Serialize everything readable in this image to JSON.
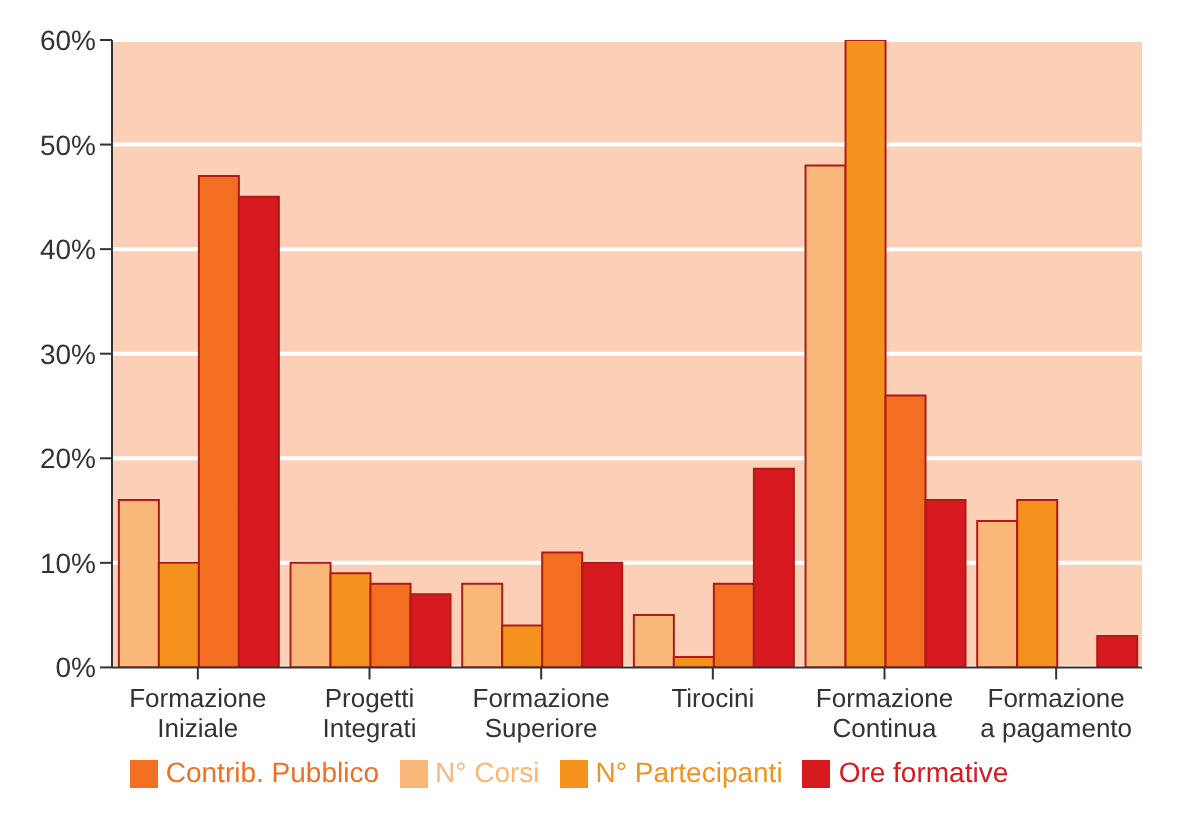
{
  "chart_data": {
    "type": "bar",
    "categories": [
      "Formazione Iniziale",
      "Progetti Integrati",
      "Formazione Superiore",
      "Tirocini",
      "Formazione Continua",
      "Formazione a pagamento"
    ],
    "series": [
      {
        "name": "N° Corsi",
        "color": "#f9b87a",
        "values": [
          16,
          10,
          8,
          5,
          48,
          14
        ]
      },
      {
        "name": "N° Partecipanti",
        "color": "#f5921e",
        "values": [
          10,
          9,
          4,
          1,
          60,
          16
        ]
      },
      {
        "name": "Contrib. Pubblico",
        "color": "#f26f22",
        "values": [
          47,
          8,
          11,
          8,
          26,
          0
        ]
      },
      {
        "name": "Ore formative",
        "color": "#d71920",
        "values": [
          45,
          7,
          10,
          19,
          16,
          3
        ]
      }
    ],
    "ylim": [
      0,
      60
    ],
    "yticks": [
      {
        "value": 0,
        "label": "0%"
      },
      {
        "value": 10,
        "label": "10%"
      },
      {
        "value": 20,
        "label": "20%"
      },
      {
        "value": 30,
        "label": "30%"
      },
      {
        "value": 40,
        "label": "40%"
      },
      {
        "value": 50,
        "label": "50%"
      },
      {
        "value": 60,
        "label": "60%"
      }
    ],
    "grid": "y",
    "legend": "bottom"
  }
}
